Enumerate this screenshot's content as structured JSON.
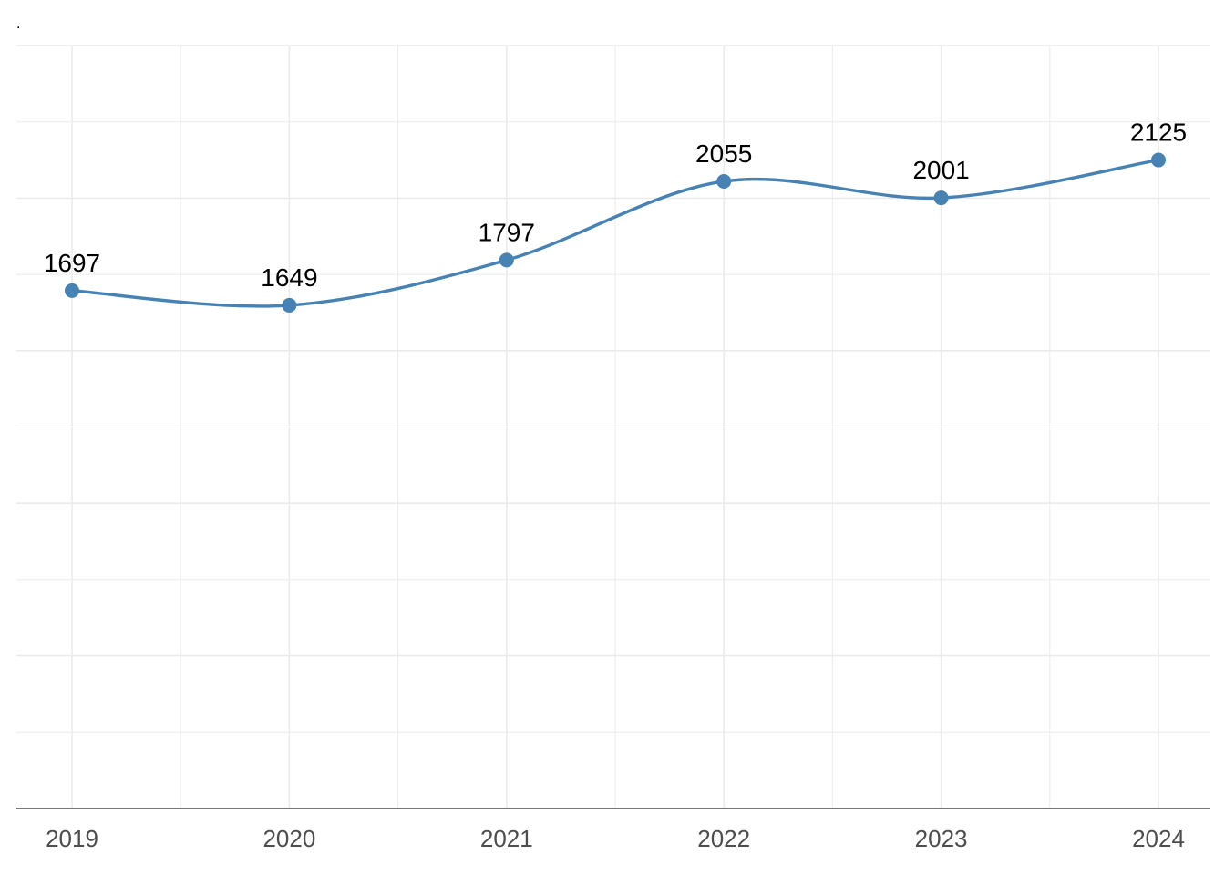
{
  "page": {
    "corner_mark": "."
  },
  "chart_data": {
    "type": "line",
    "categories": [
      "2019",
      "2020",
      "2021",
      "2022",
      "2023",
      "2024"
    ],
    "values": [
      1697,
      1649,
      1797,
      2055,
      2001,
      2125
    ],
    "data_labels": [
      "1697",
      "1649",
      "1797",
      "2055",
      "2001",
      "2125"
    ],
    "title": "",
    "xlabel": "",
    "ylabel": "",
    "ylim": [
      0,
      2500
    ],
    "y_ticks_shown": false,
    "grid": true,
    "smooth": true,
    "line_color": "#4682b4",
    "point_color": "#4682b4",
    "grid_color": "#ebebeb",
    "axis_color": "#4d4d4d",
    "tick_label_color": "#4d4d4d",
    "data_label_color": "#000000"
  }
}
